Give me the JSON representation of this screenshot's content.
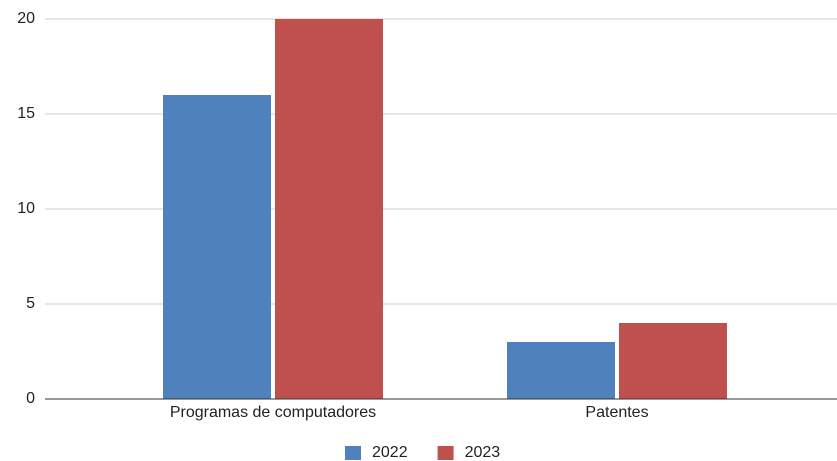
{
  "chart_data": {
    "type": "bar",
    "categories": [
      "Programas de computadores",
      "Patentes"
    ],
    "series": [
      {
        "name": "2022",
        "color": "#4f81bd",
        "values": [
          16,
          3
        ]
      },
      {
        "name": "2023",
        "color": "#c0504d",
        "values": [
          20,
          4
        ]
      }
    ],
    "ylim": [
      0,
      20
    ],
    "yticks": [
      0,
      5,
      10,
      15,
      20
    ],
    "grid": true,
    "legend": "bottom"
  }
}
